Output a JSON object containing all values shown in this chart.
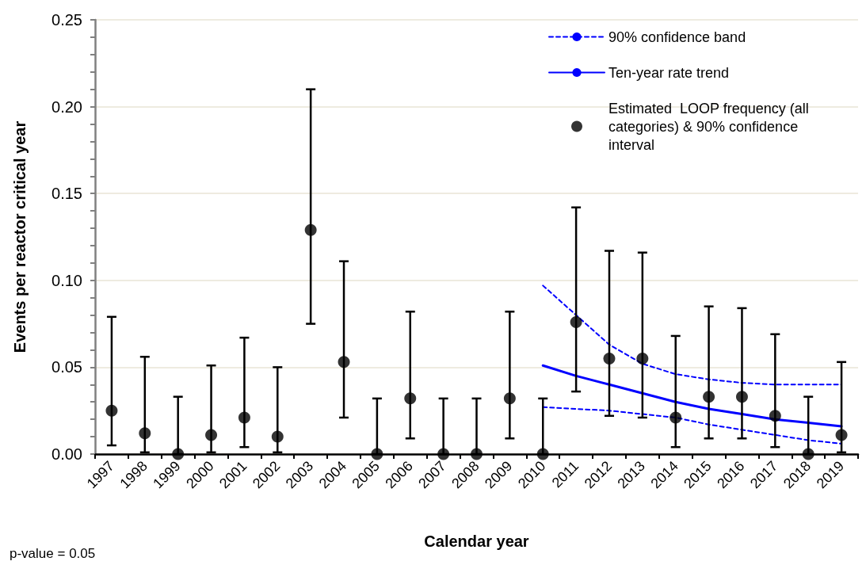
{
  "chart_data": {
    "type": "line",
    "xlabel": "Calendar year",
    "ylabel": "Events per reactor critical year",
    "categories": [
      "1997",
      "1998",
      "1999",
      "2000",
      "2001",
      "2002",
      "2003",
      "2004",
      "2005",
      "2006",
      "2007",
      "2008",
      "2009",
      "2010",
      "2011",
      "2012",
      "2013",
      "2014",
      "2015",
      "2016",
      "2017",
      "2018",
      "2019"
    ],
    "series": [
      {
        "name": "90% confidence band",
        "type": "line",
        "color": "#0000ff",
        "line_style": "dashed",
        "marker": "none",
        "values": [
          null,
          null,
          null,
          null,
          null,
          null,
          null,
          null,
          null,
          null,
          null,
          null,
          null,
          0.097,
          0.08,
          0.063,
          0.052,
          0.046,
          0.043,
          0.041,
          0.04,
          0.04,
          0.04
        ]
      },
      {
        "name": "Ten-year rate trend",
        "type": "line",
        "color": "#0000ff",
        "line_style": "solid",
        "marker": "none",
        "values": [
          null,
          null,
          null,
          null,
          null,
          null,
          null,
          null,
          null,
          null,
          null,
          null,
          null,
          0.051,
          0.045,
          0.04,
          0.035,
          0.03,
          0.026,
          0.023,
          0.02,
          0.018,
          0.016
        ]
      },
      {
        "name": "Estimated  LOOP frequency (all categories) & 90% confidence interval",
        "type": "scatter",
        "color": "#000000",
        "marker": "circle",
        "values": [
          0.025,
          0.012,
          0,
          0.011,
          0.021,
          0.01,
          0.129,
          0.053,
          0,
          0.032,
          0,
          0,
          0.032,
          0,
          0.076,
          0.055,
          0.055,
          0.021,
          0.033,
          0.033,
          0.022,
          0,
          0.011
        ],
        "errors": [
          [
            0.005,
            0.079
          ],
          [
            0.001,
            0.056
          ],
          [
            0,
            0.033
          ],
          [
            0.001,
            0.051
          ],
          [
            0.004,
            0.067
          ],
          [
            0.001,
            0.05
          ],
          [
            0.075,
            0.21
          ],
          [
            0.021,
            0.111
          ],
          [
            0,
            0.032
          ],
          [
            0.009,
            0.082
          ],
          [
            0,
            0.032
          ],
          [
            0,
            0.032
          ],
          [
            0.009,
            0.082
          ],
          [
            0,
            0.032
          ],
          [
            0.036,
            0.142
          ],
          [
            0.022,
            0.117
          ],
          [
            0.021,
            0.116
          ],
          [
            0.004,
            0.068
          ],
          [
            0.009,
            0.085
          ],
          [
            0.009,
            0.084
          ],
          [
            0.004,
            0.069
          ],
          [
            0,
            0.033
          ],
          [
            0.001,
            0.053
          ]
        ]
      },
      {
        "color": "#0000ff",
        "line_style": "dashed",
        "marker": "none",
        "values": [
          null,
          null,
          null,
          null,
          null,
          null,
          null,
          null,
          null,
          null,
          null,
          null,
          null,
          0.027,
          0.026,
          0.025,
          0.023,
          0.021,
          0.017,
          0.014,
          0.011,
          0.008,
          0.006
        ]
      }
    ],
    "ylim": [
      0,
      0.25
    ],
    "yticks": [
      {
        "value": 0,
        "label": "0.00"
      },
      {
        "value": 0.05,
        "label": "0.05"
      },
      {
        "value": 0.1,
        "label": "0.10"
      },
      {
        "value": 0.15,
        "label": "0.15"
      },
      {
        "value": 0.2,
        "label": "0.20"
      },
      {
        "value": 0.25,
        "label": "0.25"
      }
    ],
    "grid": "y",
    "legend": "top right",
    "annotations": [
      "p-value = 0.05"
    ]
  }
}
